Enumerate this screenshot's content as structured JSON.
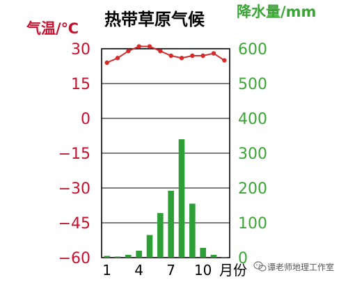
{
  "chart_data": {
    "type": "bar",
    "title": "热带草原气候",
    "left_axis_label": "气温/℃",
    "right_axis_label": "降水量/mm",
    "x_unit_label": "月份",
    "months": [
      1,
      2,
      3,
      4,
      5,
      6,
      7,
      8,
      9,
      10,
      11,
      12
    ],
    "x_tick_labels": [
      "1",
      "4",
      "7",
      "10"
    ],
    "x_tick_months": [
      1,
      4,
      7,
      10
    ],
    "temperature_ticks": [
      "30",
      "15",
      "0",
      "−15",
      "−30",
      "−45",
      "−60"
    ],
    "temperature_tick_values": [
      30,
      15,
      0,
      -15,
      -30,
      -45,
      -60
    ],
    "temperature_ylim": [
      -60,
      30
    ],
    "precip_ticks": [
      "600",
      "500",
      "400",
      "300",
      "200",
      "100",
      "0"
    ],
    "precip_tick_values": [
      600,
      500,
      400,
      300,
      200,
      100,
      0
    ],
    "precip_ylim": [
      0,
      600
    ],
    "series": [
      {
        "name": "气温",
        "type": "line",
        "axis": "left",
        "color": "#d62b2b",
        "values": [
          24,
          26,
          29,
          31,
          31,
          29,
          27,
          26,
          27,
          27,
          28,
          25
        ]
      },
      {
        "name": "降水量",
        "type": "bar",
        "axis": "right",
        "color": "#2e9e36",
        "values": [
          5,
          3,
          8,
          20,
          65,
          128,
          192,
          340,
          155,
          28,
          8,
          2
        ]
      }
    ],
    "grid": true
  },
  "watermark": {
    "text": "谭老师地理工作室",
    "icon": "wechat-icon"
  },
  "colors": {
    "temperature": "#c8102e",
    "precipitation": "#3aa535",
    "bar": "#2e9e36",
    "line": "#d62b2b"
  }
}
